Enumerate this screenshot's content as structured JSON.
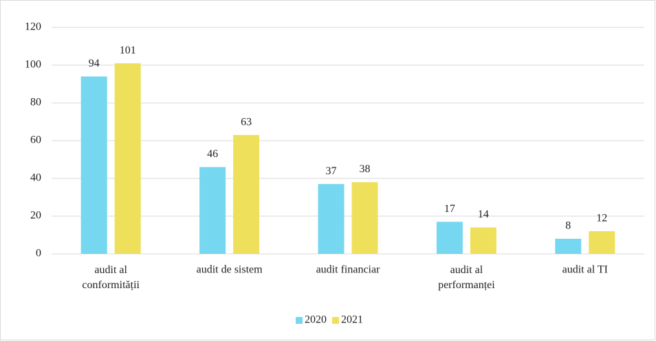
{
  "chart_data": {
    "type": "bar",
    "categories": [
      "audit al conformității",
      "audit de sistem",
      "audit financiar",
      "audit al performanței",
      "audit al TI"
    ],
    "series": [
      {
        "name": "2020",
        "color": "#75d7f0",
        "values": [
          94,
          46,
          37,
          17,
          8
        ]
      },
      {
        "name": "2021",
        "color": "#eee05a",
        "values": [
          101,
          63,
          38,
          14,
          12
        ]
      }
    ],
    "ylim": [
      0,
      120
    ],
    "yticks": [
      0,
      20,
      40,
      60,
      80,
      100,
      120
    ],
    "grid": true,
    "legend": "bottom"
  }
}
